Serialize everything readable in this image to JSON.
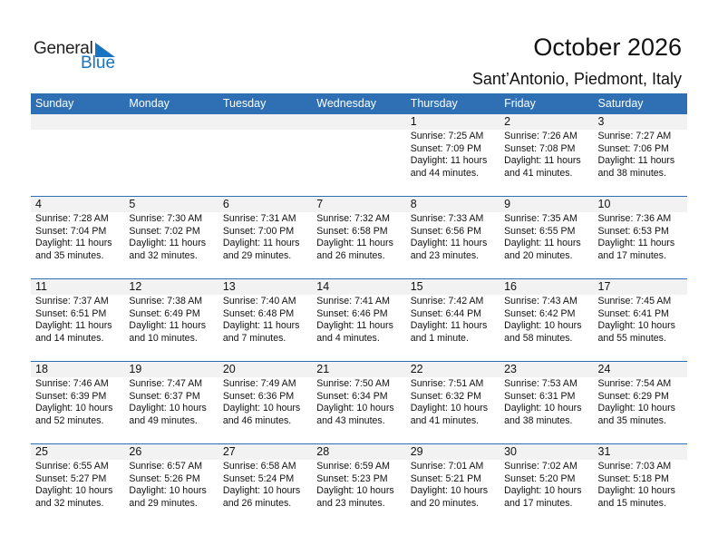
{
  "logo": {
    "general": "General",
    "blue": "Blue",
    "accent": "#1a73c0"
  },
  "header": {
    "title": "October 2026",
    "location": "Sant’Antonio, Piedmont, Italy"
  },
  "colors": {
    "header_bg": "#2f6fb3",
    "date_strip": "#f2f2f2"
  },
  "weekdays": [
    "Sunday",
    "Monday",
    "Tuesday",
    "Wednesday",
    "Thursday",
    "Friday",
    "Saturday"
  ],
  "weeks": [
    [
      null,
      null,
      null,
      null,
      {
        "day": "1",
        "sunrise": "Sunrise: 7:25 AM",
        "sunset": "Sunset: 7:09 PM",
        "daylight1": "Daylight: 11 hours",
        "daylight2": "and 44 minutes."
      },
      {
        "day": "2",
        "sunrise": "Sunrise: 7:26 AM",
        "sunset": "Sunset: 7:08 PM",
        "daylight1": "Daylight: 11 hours",
        "daylight2": "and 41 minutes."
      },
      {
        "day": "3",
        "sunrise": "Sunrise: 7:27 AM",
        "sunset": "Sunset: 7:06 PM",
        "daylight1": "Daylight: 11 hours",
        "daylight2": "and 38 minutes."
      }
    ],
    [
      {
        "day": "4",
        "sunrise": "Sunrise: 7:28 AM",
        "sunset": "Sunset: 7:04 PM",
        "daylight1": "Daylight: 11 hours",
        "daylight2": "and 35 minutes."
      },
      {
        "day": "5",
        "sunrise": "Sunrise: 7:30 AM",
        "sunset": "Sunset: 7:02 PM",
        "daylight1": "Daylight: 11 hours",
        "daylight2": "and 32 minutes."
      },
      {
        "day": "6",
        "sunrise": "Sunrise: 7:31 AM",
        "sunset": "Sunset: 7:00 PM",
        "daylight1": "Daylight: 11 hours",
        "daylight2": "and 29 minutes."
      },
      {
        "day": "7",
        "sunrise": "Sunrise: 7:32 AM",
        "sunset": "Sunset: 6:58 PM",
        "daylight1": "Daylight: 11 hours",
        "daylight2": "and 26 minutes."
      },
      {
        "day": "8",
        "sunrise": "Sunrise: 7:33 AM",
        "sunset": "Sunset: 6:56 PM",
        "daylight1": "Daylight: 11 hours",
        "daylight2": "and 23 minutes."
      },
      {
        "day": "9",
        "sunrise": "Sunrise: 7:35 AM",
        "sunset": "Sunset: 6:55 PM",
        "daylight1": "Daylight: 11 hours",
        "daylight2": "and 20 minutes."
      },
      {
        "day": "10",
        "sunrise": "Sunrise: 7:36 AM",
        "sunset": "Sunset: 6:53 PM",
        "daylight1": "Daylight: 11 hours",
        "daylight2": "and 17 minutes."
      }
    ],
    [
      {
        "day": "11",
        "sunrise": "Sunrise: 7:37 AM",
        "sunset": "Sunset: 6:51 PM",
        "daylight1": "Daylight: 11 hours",
        "daylight2": "and 14 minutes."
      },
      {
        "day": "12",
        "sunrise": "Sunrise: 7:38 AM",
        "sunset": "Sunset: 6:49 PM",
        "daylight1": "Daylight: 11 hours",
        "daylight2": "and 10 minutes."
      },
      {
        "day": "13",
        "sunrise": "Sunrise: 7:40 AM",
        "sunset": "Sunset: 6:48 PM",
        "daylight1": "Daylight: 11 hours",
        "daylight2": "and 7 minutes."
      },
      {
        "day": "14",
        "sunrise": "Sunrise: 7:41 AM",
        "sunset": "Sunset: 6:46 PM",
        "daylight1": "Daylight: 11 hours",
        "daylight2": "and 4 minutes."
      },
      {
        "day": "15",
        "sunrise": "Sunrise: 7:42 AM",
        "sunset": "Sunset: 6:44 PM",
        "daylight1": "Daylight: 11 hours",
        "daylight2": "and 1 minute."
      },
      {
        "day": "16",
        "sunrise": "Sunrise: 7:43 AM",
        "sunset": "Sunset: 6:42 PM",
        "daylight1": "Daylight: 10 hours",
        "daylight2": "and 58 minutes."
      },
      {
        "day": "17",
        "sunrise": "Sunrise: 7:45 AM",
        "sunset": "Sunset: 6:41 PM",
        "daylight1": "Daylight: 10 hours",
        "daylight2": "and 55 minutes."
      }
    ],
    [
      {
        "day": "18",
        "sunrise": "Sunrise: 7:46 AM",
        "sunset": "Sunset: 6:39 PM",
        "daylight1": "Daylight: 10 hours",
        "daylight2": "and 52 minutes."
      },
      {
        "day": "19",
        "sunrise": "Sunrise: 7:47 AM",
        "sunset": "Sunset: 6:37 PM",
        "daylight1": "Daylight: 10 hours",
        "daylight2": "and 49 minutes."
      },
      {
        "day": "20",
        "sunrise": "Sunrise: 7:49 AM",
        "sunset": "Sunset: 6:36 PM",
        "daylight1": "Daylight: 10 hours",
        "daylight2": "and 46 minutes."
      },
      {
        "day": "21",
        "sunrise": "Sunrise: 7:50 AM",
        "sunset": "Sunset: 6:34 PM",
        "daylight1": "Daylight: 10 hours",
        "daylight2": "and 43 minutes."
      },
      {
        "day": "22",
        "sunrise": "Sunrise: 7:51 AM",
        "sunset": "Sunset: 6:32 PM",
        "daylight1": "Daylight: 10 hours",
        "daylight2": "and 41 minutes."
      },
      {
        "day": "23",
        "sunrise": "Sunrise: 7:53 AM",
        "sunset": "Sunset: 6:31 PM",
        "daylight1": "Daylight: 10 hours",
        "daylight2": "and 38 minutes."
      },
      {
        "day": "24",
        "sunrise": "Sunrise: 7:54 AM",
        "sunset": "Sunset: 6:29 PM",
        "daylight1": "Daylight: 10 hours",
        "daylight2": "and 35 minutes."
      }
    ],
    [
      {
        "day": "25",
        "sunrise": "Sunrise: 6:55 AM",
        "sunset": "Sunset: 5:27 PM",
        "daylight1": "Daylight: 10 hours",
        "daylight2": "and 32 minutes."
      },
      {
        "day": "26",
        "sunrise": "Sunrise: 6:57 AM",
        "sunset": "Sunset: 5:26 PM",
        "daylight1": "Daylight: 10 hours",
        "daylight2": "and 29 minutes."
      },
      {
        "day": "27",
        "sunrise": "Sunrise: 6:58 AM",
        "sunset": "Sunset: 5:24 PM",
        "daylight1": "Daylight: 10 hours",
        "daylight2": "and 26 minutes."
      },
      {
        "day": "28",
        "sunrise": "Sunrise: 6:59 AM",
        "sunset": "Sunset: 5:23 PM",
        "daylight1": "Daylight: 10 hours",
        "daylight2": "and 23 minutes."
      },
      {
        "day": "29",
        "sunrise": "Sunrise: 7:01 AM",
        "sunset": "Sunset: 5:21 PM",
        "daylight1": "Daylight: 10 hours",
        "daylight2": "and 20 minutes."
      },
      {
        "day": "30",
        "sunrise": "Sunrise: 7:02 AM",
        "sunset": "Sunset: 5:20 PM",
        "daylight1": "Daylight: 10 hours",
        "daylight2": "and 17 minutes."
      },
      {
        "day": "31",
        "sunrise": "Sunrise: 7:03 AM",
        "sunset": "Sunset: 5:18 PM",
        "daylight1": "Daylight: 10 hours",
        "daylight2": "and 15 minutes."
      }
    ]
  ]
}
